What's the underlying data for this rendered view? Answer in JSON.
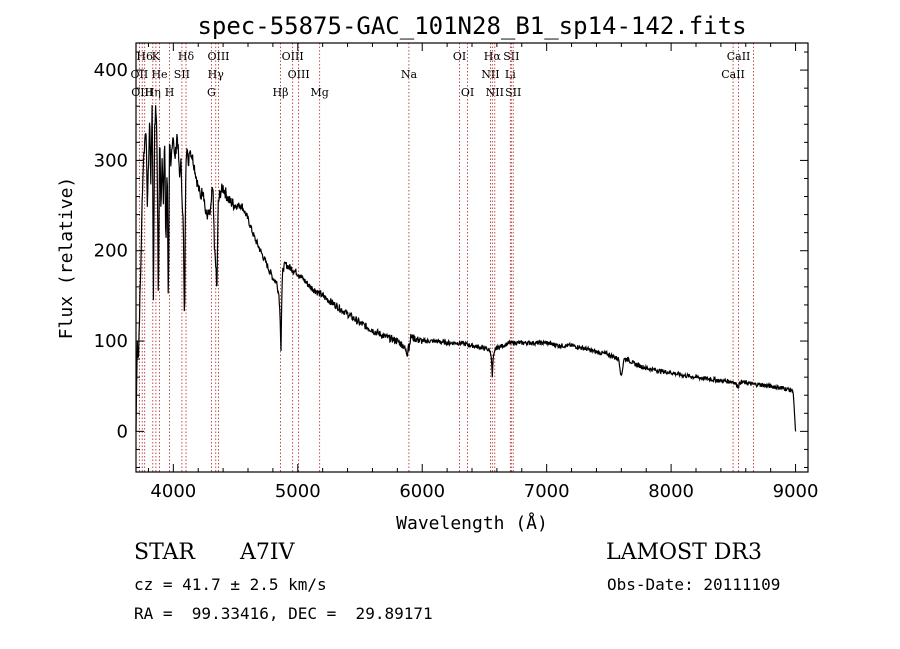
{
  "chart_data": {
    "type": "line",
    "title": "spec-55875-GAC_101N28_B1_sp14-142.fits",
    "xlabel": "Wavelength (Å)",
    "ylabel": "Flux (relative)",
    "xlim": [
      3700,
      9100
    ],
    "ylim": [
      -45,
      430
    ],
    "x_ticks": [
      4000,
      5000,
      6000,
      7000,
      8000,
      9000
    ],
    "y_ticks": [
      0,
      100,
      200,
      300,
      400
    ],
    "series": [
      {
        "name": "flux",
        "x": [
          3700,
          3710,
          3720,
          3730,
          3740,
          3750,
          3760,
          3770,
          3780,
          3790,
          3800,
          3810,
          3820,
          3830,
          3840,
          3850,
          3860,
          3870,
          3880,
          3890,
          3900,
          3910,
          3920,
          3930,
          3940,
          3950,
          3960,
          3970,
          3980,
          3990,
          4000,
          4010,
          4020,
          4030,
          4040,
          4050,
          4060,
          4070,
          4080,
          4090,
          4100,
          4110,
          4120,
          4130,
          4140,
          4160,
          4180,
          4200,
          4220,
          4240,
          4260,
          4280,
          4300,
          4310,
          4320,
          4330,
          4340,
          4350,
          4360,
          4370,
          4380,
          4400,
          4450,
          4500,
          4550,
          4600,
          4650,
          4700,
          4750,
          4800,
          4830,
          4850,
          4860,
          4865,
          4870,
          4880,
          4900,
          4950,
          5000,
          5100,
          5200,
          5300,
          5400,
          5500,
          5600,
          5700,
          5800,
          5850,
          5880,
          5890,
          5895,
          5900,
          5910,
          5950,
          6000,
          6100,
          6200,
          6300,
          6400,
          6500,
          6540,
          6555,
          6563,
          6570,
          6590,
          6650,
          6700,
          6800,
          6900,
          7000,
          7100,
          7200,
          7300,
          7400,
          7500,
          7580,
          7600,
          7620,
          7650,
          7700,
          7800,
          7900,
          8000,
          8100,
          8200,
          8300,
          8400,
          8500,
          8540,
          8560,
          8660,
          8700,
          8800,
          8900,
          8980,
          9000
        ],
        "values": [
          0,
          100,
          80,
          140,
          190,
          260,
          300,
          320,
          340,
          250,
          290,
          350,
          270,
          370,
          150,
          340,
          360,
          310,
          130,
          340,
          250,
          300,
          250,
          330,
          200,
          300,
          140,
          320,
          290,
          320,
          330,
          300,
          310,
          330,
          310,
          280,
          300,
          260,
          230,
          110,
          300,
          320,
          290,
          315,
          310,
          300,
          285,
          270,
          260,
          270,
          240,
          240,
          240,
          270,
          260,
          200,
          190,
          150,
          250,
          260,
          265,
          270,
          255,
          250,
          250,
          235,
          215,
          200,
          185,
          170,
          165,
          150,
          120,
          85,
          140,
          180,
          185,
          180,
          175,
          160,
          150,
          140,
          130,
          120,
          112,
          105,
          100,
          95,
          85,
          100,
          90,
          100,
          105,
          102,
          100,
          100,
          98,
          98,
          95,
          92,
          90,
          85,
          60,
          80,
          92,
          95,
          98,
          98,
          98,
          98,
          95,
          95,
          92,
          88,
          85,
          80,
          60,
          80,
          80,
          75,
          70,
          67,
          65,
          62,
          60,
          58,
          56,
          55,
          50,
          55,
          52,
          52,
          50,
          48,
          45,
          0
        ]
      }
    ],
    "spectral_lines": [
      {
        "name": "H6",
        "x": 3770
      },
      {
        "name": "K",
        "x": 3860
      },
      {
        "name": "Hδ",
        "x": 4102
      },
      {
        "name": "OIII",
        "x": 4363
      },
      {
        "name": "OIII",
        "x": 4959
      },
      {
        "name": "OI",
        "x": 6300
      },
      {
        "name": "Hα",
        "x": 6563
      },
      {
        "name": "SII",
        "x": 6716
      },
      {
        "name": "CaII",
        "x": 8542
      },
      {
        "name": "OII",
        "x": 3727
      },
      {
        "name": "He",
        "x": 3889
      },
      {
        "name": "SII",
        "x": 4069
      },
      {
        "name": "Hγ",
        "x": 4341
      },
      {
        "name": "OIII",
        "x": 5007
      },
      {
        "name": "Na",
        "x": 5893
      },
      {
        "name": "NII",
        "x": 6548
      },
      {
        "name": "Li",
        "x": 6708
      },
      {
        "name": "CaII",
        "x": 8498
      },
      {
        "name": "OIII",
        "x": 3750
      },
      {
        "name": "Hη",
        "x": 3835
      },
      {
        "name": "H",
        "x": 3970
      },
      {
        "name": "G",
        "x": 4306
      },
      {
        "name": "Hβ",
        "x": 4861
      },
      {
        "name": "Mg",
        "x": 5176
      },
      {
        "name": "OI",
        "x": 6364
      },
      {
        "name": "NII",
        "x": 6583
      },
      {
        "name": "SII",
        "x": 6731
      },
      {
        "name": "CaII",
        "x": 8662
      }
    ]
  },
  "info": {
    "object_type": "STAR",
    "subclass": "A7IV",
    "survey": "LAMOST DR3",
    "cz": "cz = 41.7 ± 2.5 km/s",
    "obs_date": "Obs-Date: 20111109",
    "coords": "RA =  99.33416, DEC =  29.89171"
  },
  "colors": {
    "spectrum": "#000000",
    "line_marker": "#b22222"
  }
}
